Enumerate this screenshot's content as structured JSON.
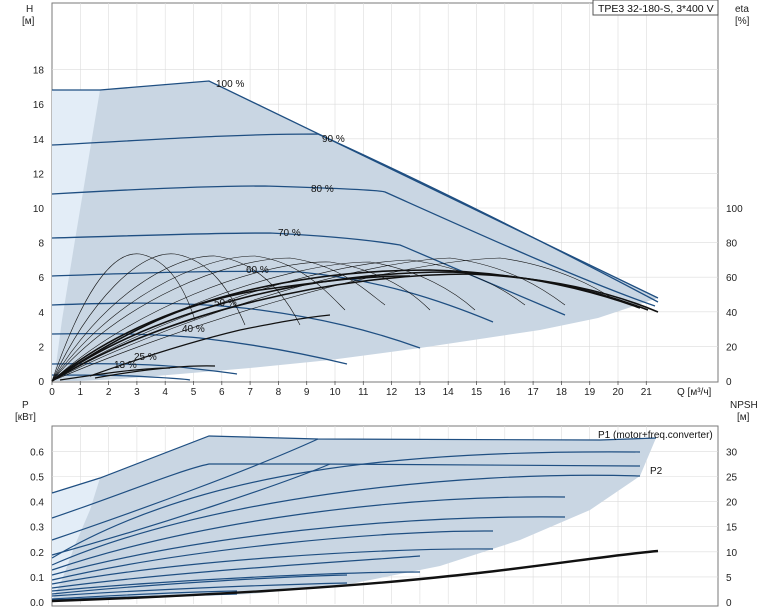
{
  "title_box": "TPE3 32-180-S, 3*400 V",
  "colors": {
    "envelope": "#c9d6e3",
    "envelope_light": "#e3edf7",
    "curve": "#1f4f82",
    "eff": "#111111",
    "grid": "#cfcfcf",
    "axis": "#555555"
  },
  "top_axes": {
    "y_left_label_1": "H",
    "y_left_label_2": "[м]",
    "y_right_label_1": "eta",
    "y_right_label_2": "[%]",
    "x_label": "Q [м³/ч]",
    "x_ticks": [
      "0",
      "1",
      "2",
      "3",
      "4",
      "5",
      "6",
      "7",
      "8",
      "9",
      "10",
      "11",
      "12",
      "13",
      "14",
      "15",
      "16",
      "17",
      "18",
      "19",
      "20",
      "21"
    ],
    "y_left_ticks": [
      "0",
      "2",
      "4",
      "6",
      "8",
      "10",
      "12",
      "14",
      "16",
      "18"
    ],
    "y_right_ticks": [
      "0",
      "20",
      "40",
      "60",
      "80",
      "100"
    ]
  },
  "bottom_axes": {
    "y_left_label_1": "P",
    "y_left_label_2": "[кВт]",
    "y_right_label_1": "NPSH",
    "y_right_label_2": "[м]",
    "y_left_ticks": [
      "0.0",
      "0.1",
      "0.2",
      "0.3",
      "0.4",
      "0.5",
      "0.6"
    ],
    "y_right_ticks": [
      "0",
      "5",
      "10",
      "15",
      "20",
      "25",
      "30"
    ]
  },
  "curve_labels": {
    "s100": "100 %",
    "s90": "90 %",
    "s80": "80 %",
    "s70": "70 %",
    "s60": "60 %",
    "s50": "50 %",
    "s40": "40 %",
    "s25": "25 %",
    "s13": "13 %",
    "p1": "P1 (motor+freq.converter)",
    "p2": "P2"
  },
  "chart_data": [
    {
      "type": "line",
      "panel": "H-Q",
      "xlabel": "Q [м³/ч]",
      "ylabel": "H [м]",
      "y2label": "eta [%]",
      "xlim": [
        0,
        22
      ],
      "ylim": [
        0,
        20
      ],
      "y2lim": [
        0,
        115
      ],
      "series": [
        {
          "name": "100 %",
          "x": [
            0,
            1.5,
            5.5,
            21.2
          ],
          "y": [
            16.8,
            16.8,
            17.3,
            4.7
          ]
        },
        {
          "name": "90 %",
          "x": [
            0,
            3,
            6,
            9.2,
            21.2
          ],
          "y": [
            13.6,
            13.8,
            14.2,
            14.3,
            4.6
          ]
        },
        {
          "name": "80 %",
          "x": [
            0,
            4,
            7.5,
            10,
            21.1
          ],
          "y": [
            10.8,
            11.0,
            11.2,
            11.0,
            4.5
          ]
        },
        {
          "name": "70 %",
          "x": [
            0,
            4,
            8,
            10,
            18
          ],
          "y": [
            8.2,
            8.5,
            8.6,
            8.4,
            3.8
          ]
        },
        {
          "name": "60 %",
          "x": [
            0,
            5,
            9,
            15.5
          ],
          "y": [
            6.0,
            6.3,
            6.2,
            3.4
          ]
        },
        {
          "name": "50 %",
          "x": [
            0,
            4,
            8,
            13
          ],
          "y": [
            4.3,
            4.4,
            4.0,
            2.4
          ]
        },
        {
          "name": "40 %",
          "x": [
            0,
            4,
            7,
            10.3
          ],
          "y": [
            2.7,
            2.7,
            2.2,
            1.1
          ]
        },
        {
          "name": "25 %",
          "x": [
            0,
            2,
            4,
            6.4
          ],
          "y": [
            1.1,
            1.1,
            0.9,
            0.4
          ]
        },
        {
          "name": "13 %",
          "x": [
            0,
            2,
            4,
            4.8
          ],
          "y": [
            0.4,
            0.4,
            0.3,
            0.2
          ]
        }
      ]
    },
    {
      "type": "line",
      "panel": "P-Q",
      "xlim": [
        0,
        22
      ],
      "ylabel": "P [кВт]",
      "ylim": [
        0,
        0.7
      ],
      "y2label": "NPSH [м]",
      "y2lim": [
        0,
        35
      ],
      "series": [
        {
          "name": "P1 (motor+freq.converter)",
          "x": [
            0,
            5.5,
            9,
            21.5
          ],
          "y": [
            0.43,
            0.66,
            0.64,
            0.64
          ]
        },
        {
          "name": "P2",
          "x": [
            0,
            5.5,
            9,
            21.2
          ],
          "y": [
            0.33,
            0.55,
            0.55,
            0.55
          ]
        },
        {
          "name": "NPSH",
          "x": [
            0,
            5,
            10,
            15,
            18,
            21.2
          ],
          "y": [
            0.1,
            0.7,
            2.0,
            4.7,
            7.0,
            10.3
          ]
        }
      ]
    }
  ]
}
